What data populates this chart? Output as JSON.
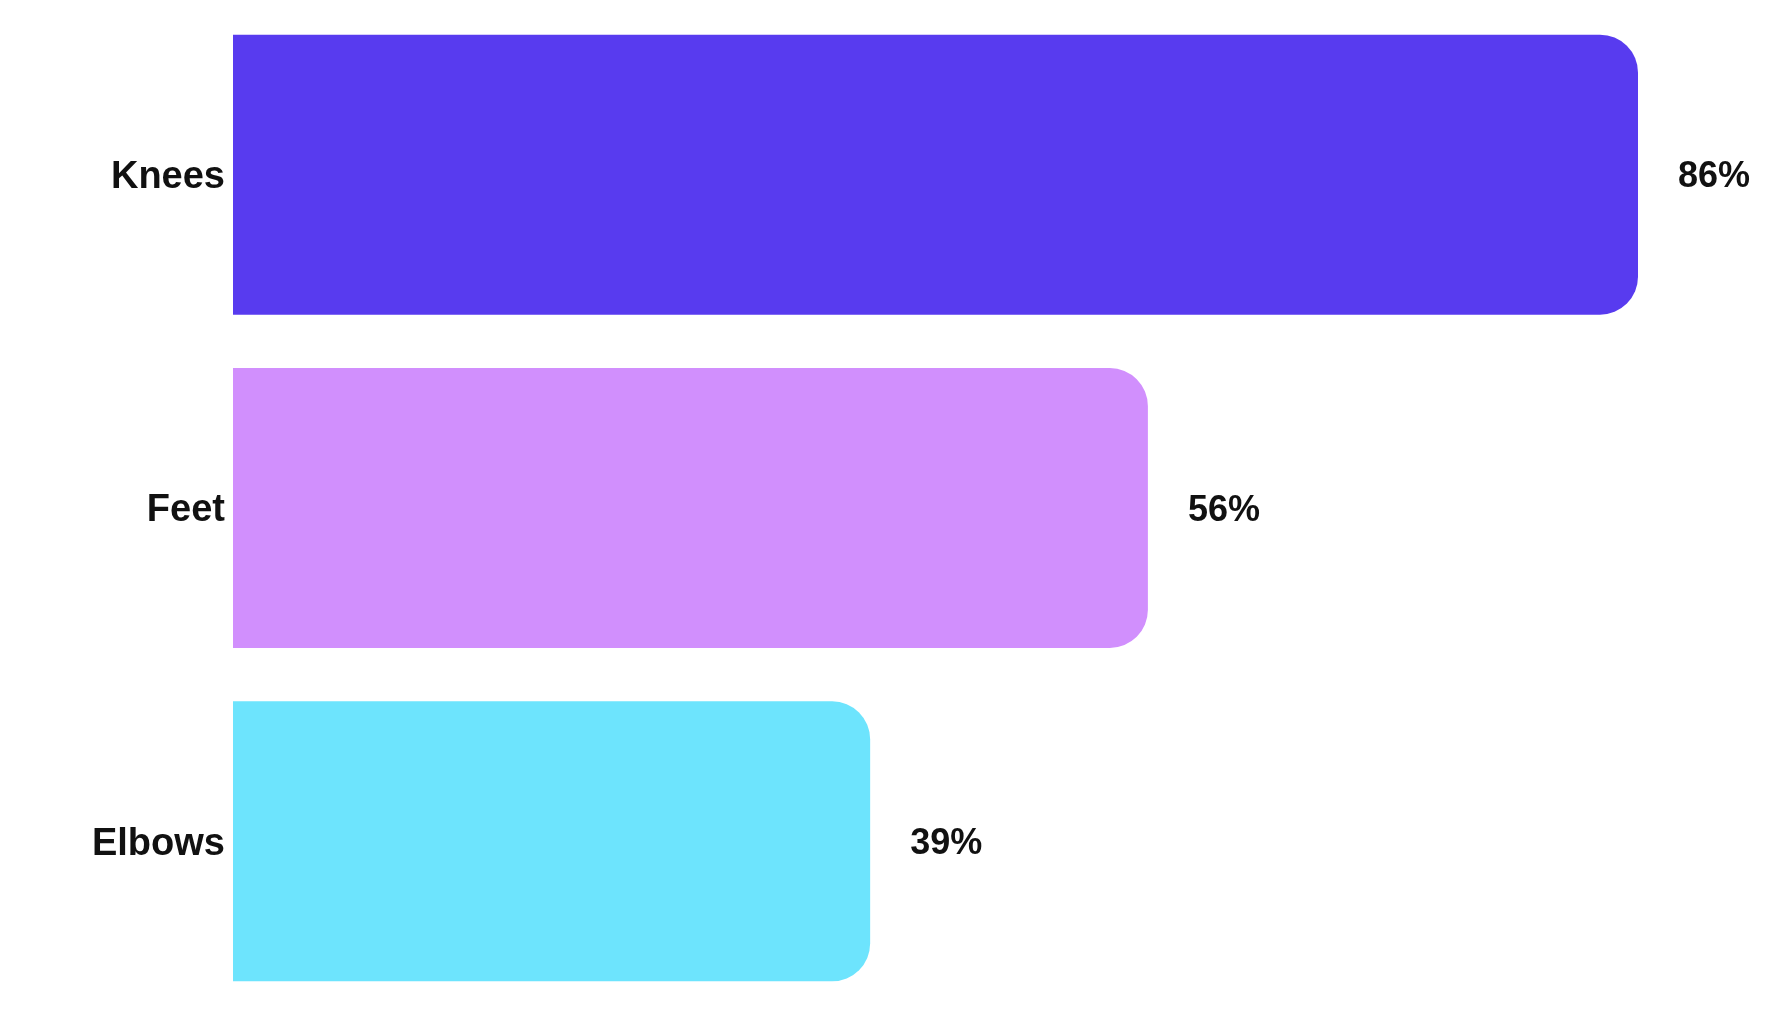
{
  "chart_data": {
    "type": "bar",
    "orientation": "horizontal",
    "categories": [
      "Knees",
      "Feet",
      "Elbows"
    ],
    "values": [
      86,
      56,
      39
    ],
    "colors": [
      "#583bef",
      "#d18ffd",
      "#6de4fd"
    ],
    "value_labels": [
      "86%",
      "56%",
      "39%"
    ],
    "tick_labels": "y",
    "grid": false
  }
}
